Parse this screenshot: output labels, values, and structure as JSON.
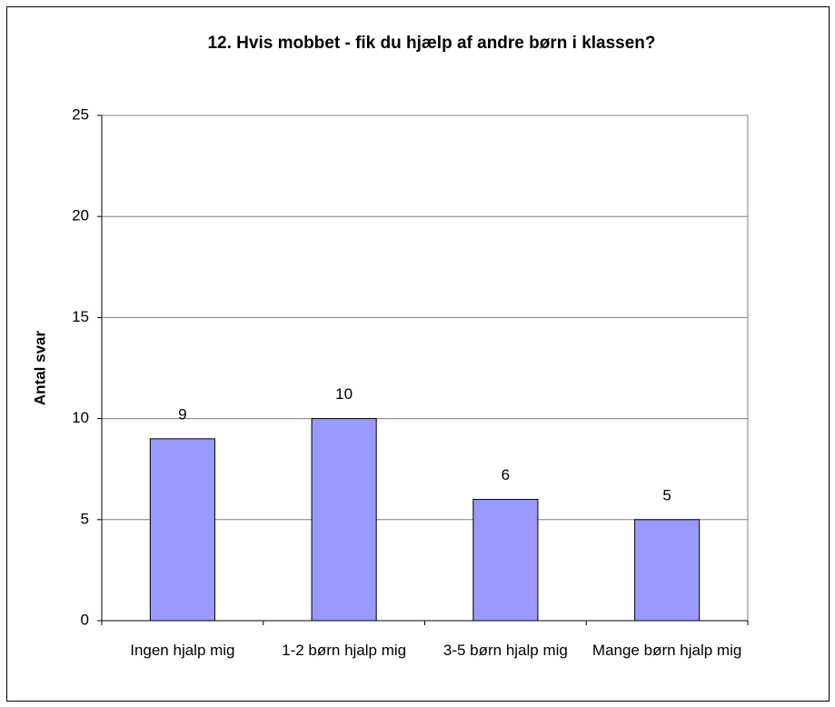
{
  "chart_data": {
    "type": "bar",
    "title": "12. Hvis mobbet - fik du hjælp af andre børn i klassen?",
    "y_label": "Antal svar",
    "categories": [
      "Ingen hjalp mig",
      "1-2 børn hjalp mig",
      "3-5 børn hjalp mig",
      "Mange børn hjalp mig"
    ],
    "values": [
      9,
      10,
      6,
      5
    ],
    "color": "#9999ff",
    "ylim": [
      0,
      25
    ],
    "yticks": [
      0,
      5,
      10,
      15,
      20,
      25
    ],
    "grid": true
  }
}
